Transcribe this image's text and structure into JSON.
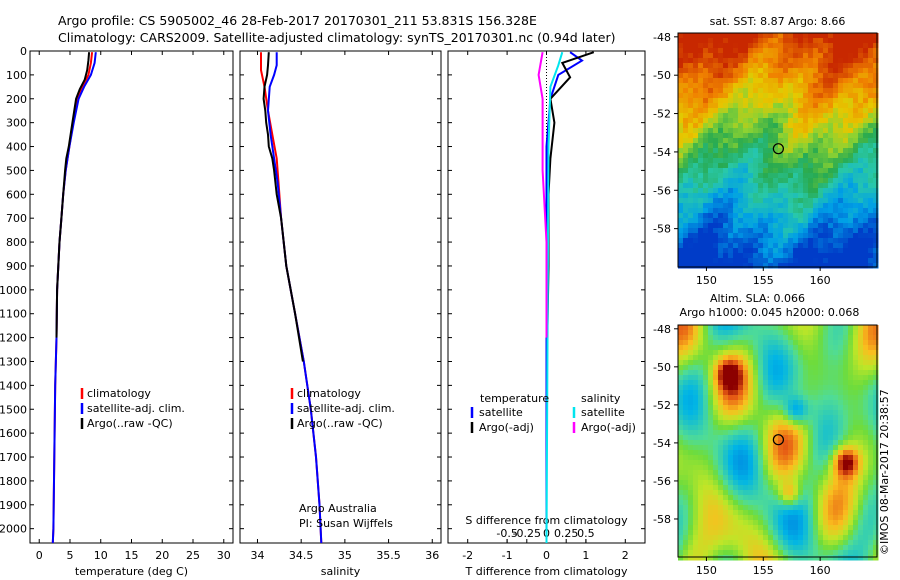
{
  "title": {
    "line1": "Argo profile: CS 5905002_46 28-Feb-2017 20170301_211 53.831S 156.328E",
    "line2": "Climatology: CARS2009. Satellite-adjusted climatology: synTS_20170301.nc (0.94d later)"
  },
  "colors": {
    "climatology": "#ff0000",
    "satellite": "#0000ff",
    "argo": "#000000",
    "s_satellite": "#00e5ee",
    "s_argo": "#ff00ff"
  },
  "chart_data": [
    {
      "type": "line",
      "xlabel": "temperature (deg C)",
      "ylabel": "",
      "xlim": [
        -1.5,
        31.5
      ],
      "ylim": [
        2060,
        0
      ],
      "xticks": [
        0,
        5,
        10,
        15,
        20,
        25,
        30
      ],
      "yticks": [
        0,
        100,
        200,
        300,
        400,
        500,
        600,
        700,
        800,
        900,
        1000,
        1100,
        1200,
        1300,
        1400,
        1500,
        1600,
        1700,
        1800,
        1900,
        2000
      ],
      "legend": [
        "climatology",
        "satellite-adj. clim.",
        "Argo(..raw -QC)"
      ],
      "legend_position": "lower-right",
      "series": [
        {
          "name": "climatology",
          "color": "#ff0000",
          "points": [
            [
              8.6,
              5
            ],
            [
              8.4,
              50
            ],
            [
              8.0,
              100
            ],
            [
              7.0,
              150
            ],
            [
              6.2,
              200
            ],
            [
              5.5,
              300
            ],
            [
              4.9,
              400
            ],
            [
              4.3,
              500
            ],
            [
              3.9,
              600
            ],
            [
              3.6,
              700
            ],
            [
              3.3,
              800
            ],
            [
              3.1,
              900
            ],
            [
              2.9,
              1000
            ],
            [
              2.8,
              1200
            ],
            [
              2.6,
              1400
            ],
            [
              2.5,
              1600
            ],
            [
              2.4,
              1800
            ],
            [
              2.3,
              2000
            ],
            [
              2.2,
              2060
            ]
          ]
        },
        {
          "name": "satellite-adj. clim.",
          "color": "#0000ff",
          "points": [
            [
              9.2,
              5
            ],
            [
              9.0,
              50
            ],
            [
              8.4,
              100
            ],
            [
              7.3,
              150
            ],
            [
              6.4,
              200
            ],
            [
              5.6,
              300
            ],
            [
              4.9,
              400
            ],
            [
              4.3,
              500
            ],
            [
              3.9,
              600
            ],
            [
              3.6,
              700
            ],
            [
              3.3,
              800
            ],
            [
              3.1,
              900
            ],
            [
              2.9,
              1000
            ],
            [
              2.8,
              1200
            ],
            [
              2.6,
              1400
            ],
            [
              2.5,
              1600
            ],
            [
              2.4,
              1800
            ],
            [
              2.3,
              2000
            ],
            [
              2.2,
              2060
            ]
          ]
        },
        {
          "name": "Argo(..raw -QC)",
          "color": "#000000",
          "points": [
            [
              8.1,
              5
            ],
            [
              8.0,
              40
            ],
            [
              7.8,
              80
            ],
            [
              7.4,
              120
            ],
            [
              6.6,
              160
            ],
            [
              6.0,
              200
            ],
            [
              5.4,
              300
            ],
            [
              4.8,
              400
            ],
            [
              4.4,
              450
            ],
            [
              4.2,
              500
            ],
            [
              3.9,
              600
            ],
            [
              3.6,
              700
            ],
            [
              3.3,
              800
            ],
            [
              3.1,
              900
            ],
            [
              2.9,
              1000
            ],
            [
              2.8,
              1200
            ]
          ]
        }
      ]
    },
    {
      "type": "line",
      "xlabel": "salinity",
      "ylabel": "",
      "xlim": [
        33.8,
        36.1
      ],
      "ylim": [
        2060,
        0
      ],
      "xticks": [
        34,
        34.5,
        35,
        35.5,
        36
      ],
      "xtick_labels": [
        "34",
        "34.5",
        "35",
        "35.5",
        "36"
      ],
      "legend": [
        "climatology",
        "satellite-adj. clim.",
        "Argo(..raw -QC)"
      ],
      "legend_position": "lower-right",
      "annotations": [
        "Argo Australia",
        "PI: Susan Wijffels"
      ],
      "series": [
        {
          "name": "climatology",
          "color": "#ff0000",
          "points": [
            [
              34.04,
              5
            ],
            [
              34.04,
              80
            ],
            [
              34.08,
              150
            ],
            [
              34.12,
              250
            ],
            [
              34.17,
              350
            ],
            [
              34.22,
              450
            ],
            [
              34.24,
              550
            ],
            [
              34.27,
              700
            ],
            [
              34.33,
              900
            ],
            [
              34.43,
              1100
            ],
            [
              34.53,
              1300
            ],
            [
              34.61,
              1500
            ],
            [
              34.67,
              1700
            ],
            [
              34.71,
              1900
            ],
            [
              34.73,
              2060
            ]
          ]
        },
        {
          "name": "satellite-adj. clim.",
          "color": "#0000ff",
          "points": [
            [
              34.22,
              5
            ],
            [
              34.22,
              60
            ],
            [
              34.19,
              100
            ],
            [
              34.14,
              150
            ],
            [
              34.12,
              250
            ],
            [
              34.15,
              350
            ],
            [
              34.19,
              450
            ],
            [
              34.23,
              550
            ],
            [
              34.27,
              700
            ],
            [
              34.33,
              900
            ],
            [
              34.43,
              1100
            ],
            [
              34.53,
              1300
            ],
            [
              34.61,
              1500
            ],
            [
              34.67,
              1700
            ],
            [
              34.71,
              1900
            ],
            [
              34.73,
              2060
            ]
          ]
        },
        {
          "name": "Argo(..raw -QC)",
          "color": "#000000",
          "points": [
            [
              34.13,
              5
            ],
            [
              34.12,
              60
            ],
            [
              34.11,
              100
            ],
            [
              34.08,
              150
            ],
            [
              34.07,
              200
            ],
            [
              34.09,
              250
            ],
            [
              34.1,
              300
            ],
            [
              34.12,
              350
            ],
            [
              34.13,
              400
            ],
            [
              34.17,
              450
            ],
            [
              34.19,
              500
            ],
            [
              34.22,
              600
            ],
            [
              34.27,
              700
            ],
            [
              34.33,
              900
            ],
            [
              34.43,
              1100
            ],
            [
              34.52,
              1300
            ]
          ]
        }
      ]
    },
    {
      "type": "line",
      "xlabel": "T difference from climatology",
      "x2label": "S difference from climatology",
      "xlim": [
        -2.5,
        2.5
      ],
      "ylim": [
        2060,
        0
      ],
      "xticks": [
        -2,
        -1,
        0,
        1,
        2
      ],
      "x2ticks": [
        -0.5,
        -0.25,
        0,
        0.25,
        0.5
      ],
      "x2tick_labels": [
        "-0.5",
        "-0.25",
        "0",
        "0.25",
        "0.5"
      ],
      "legend_groups": [
        {
          "heading": "temperature",
          "items": [
            {
              "label": "satellite",
              "color": "#0000ff"
            },
            {
              "label": "Argo(-adj)",
              "color": "#000000"
            }
          ]
        },
        {
          "heading": "salinity",
          "items": [
            {
              "label": "satellite",
              "color": "#00e5ee"
            },
            {
              "label": "Argo(-adj)",
              "color": "#ff00ff"
            }
          ]
        }
      ],
      "series": [
        {
          "name": "satellite",
          "group": "temperature",
          "color": "#0000ff",
          "points": [
            [
              0.6,
              5
            ],
            [
              0.9,
              40
            ],
            [
              0.3,
              100
            ],
            [
              0.1,
              200
            ],
            [
              0.0,
              400
            ],
            [
              0,
              2060
            ]
          ]
        },
        {
          "name": "Argo(-adj)",
          "group": "temperature",
          "color": "#000000",
          "points": [
            [
              1.2,
              5
            ],
            [
              0.4,
              50
            ],
            [
              0.6,
              110
            ],
            [
              0.1,
              200
            ],
            [
              0.2,
              300
            ],
            [
              0.1,
              450
            ],
            [
              0.05,
              600
            ],
            [
              0.05,
              900
            ],
            [
              0.02,
              1200
            ]
          ]
        },
        {
          "name": "satellite",
          "group": "salinity",
          "color": "#00e5ee",
          "points": [
            [
              0.4,
              5
            ],
            [
              0.3,
              60
            ],
            [
              0.1,
              150
            ],
            [
              0.05,
              400
            ],
            [
              0.0,
              2060
            ]
          ]
        },
        {
          "name": "Argo(-adj)",
          "group": "salinity",
          "color": "#ff00ff",
          "points": [
            [
              -0.1,
              5
            ],
            [
              -0.2,
              100
            ],
            [
              -0.1,
              200
            ],
            [
              -0.1,
              350
            ],
            [
              -0.1,
              500
            ],
            [
              0.0,
              800
            ],
            [
              0.0,
              1200
            ]
          ]
        }
      ]
    },
    {
      "type": "heatmap",
      "title": "sat. SST: 8.87  Argo: 8.66",
      "xlim": [
        147.5,
        165
      ],
      "ylim": [
        -60,
        -47.8
      ],
      "xticks": [
        150,
        155,
        160
      ],
      "yticks": [
        -48,
        -50,
        -52,
        -54,
        -56,
        -58
      ],
      "marker": [
        156.328,
        -53.831
      ]
    },
    {
      "type": "heatmap",
      "title": "Altim. SLA: 0.066",
      "subtitle": "Argo h1000: 0.045 h2000: 0.068",
      "xlim": [
        147.5,
        165
      ],
      "ylim": [
        -60,
        -47.8
      ],
      "xticks": [
        150,
        155,
        160
      ],
      "yticks": [
        -48,
        -50,
        -52,
        -54,
        -56,
        -58
      ],
      "marker": [
        156.328,
        -53.831
      ]
    }
  ],
  "footer": {
    "credit": "©IMOS 08-Mar-2017 20:38:57"
  }
}
